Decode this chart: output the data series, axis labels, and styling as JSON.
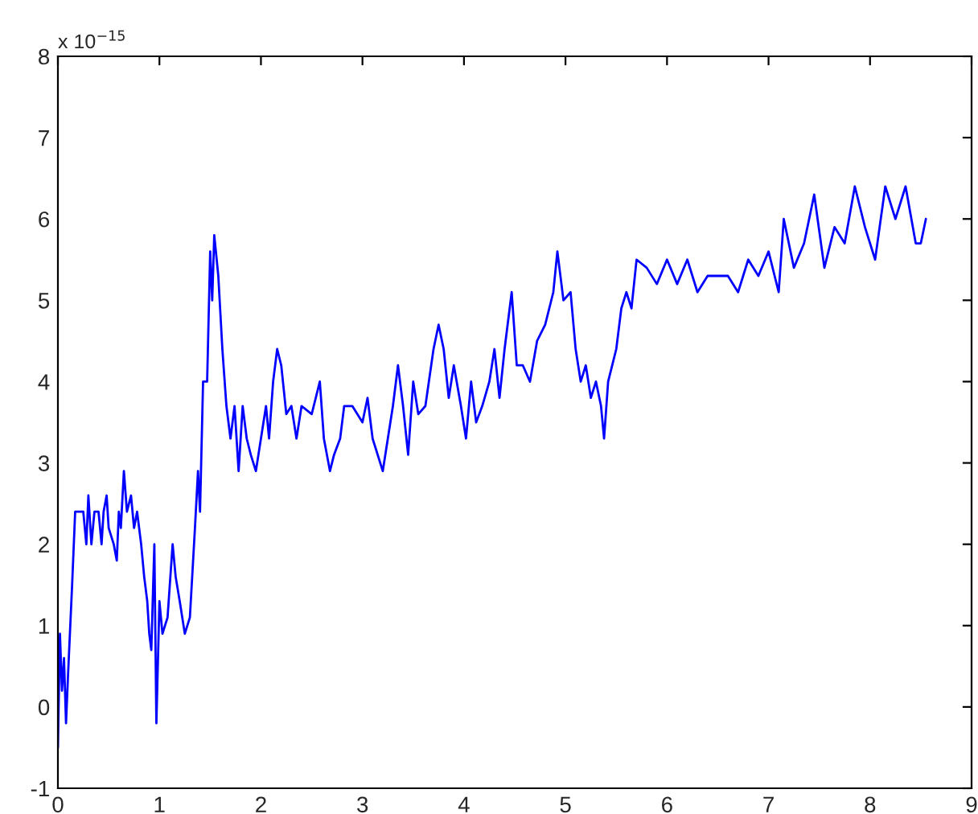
{
  "chart_data": {
    "type": "line",
    "x": [
      0,
      0.02,
      0.04,
      0.06,
      0.08,
      0.1,
      0.14,
      0.17,
      0.25,
      0.28,
      0.3,
      0.33,
      0.36,
      0.4,
      0.43,
      0.45,
      0.48,
      0.5,
      0.55,
      0.58,
      0.6,
      0.62,
      0.65,
      0.68,
      0.72,
      0.75,
      0.78,
      0.82,
      0.85,
      0.88,
      0.9,
      0.92,
      0.95,
      0.97,
      1.0,
      1.03,
      1.08,
      1.13,
      1.16,
      1.2,
      1.25,
      1.3,
      1.35,
      1.38,
      1.4,
      1.43,
      1.47,
      1.5,
      1.52,
      1.54,
      1.58,
      1.62,
      1.66,
      1.7,
      1.74,
      1.78,
      1.82,
      1.86,
      1.9,
      1.95,
      2.0,
      2.05,
      2.08,
      2.12,
      2.16,
      2.2,
      2.25,
      2.3,
      2.35,
      2.4,
      2.5,
      2.58,
      2.62,
      2.68,
      2.72,
      2.78,
      2.82,
      2.9,
      3.0,
      3.05,
      3.1,
      3.2,
      3.25,
      3.3,
      3.35,
      3.4,
      3.45,
      3.5,
      3.55,
      3.62,
      3.7,
      3.75,
      3.8,
      3.85,
      3.9,
      3.97,
      4.02,
      4.07,
      4.12,
      4.18,
      4.25,
      4.3,
      4.35,
      4.4,
      4.47,
      4.52,
      4.58,
      4.65,
      4.72,
      4.8,
      4.88,
      4.92,
      4.98,
      5.05,
      5.1,
      5.15,
      5.2,
      5.25,
      5.3,
      5.35,
      5.38,
      5.42,
      5.5,
      5.55,
      5.6,
      5.65,
      5.7,
      5.8,
      5.9,
      6.0,
      6.1,
      6.2,
      6.3,
      6.4,
      6.5,
      6.6,
      6.7,
      6.8,
      6.9,
      7.0,
      7.1,
      7.15,
      7.25,
      7.35,
      7.45,
      7.55,
      7.65,
      7.75,
      7.85,
      7.95,
      8.05,
      8.15,
      8.25,
      8.35,
      8.45,
      8.5,
      8.55
    ],
    "series": [
      {
        "color": "#0000ff",
        "values": [
          -0.5,
          0.9,
          0.2,
          0.6,
          -0.2,
          0.4,
          1.5,
          2.4,
          2.4,
          2.0,
          2.6,
          2.0,
          2.4,
          2.4,
          2.0,
          2.4,
          2.6,
          2.2,
          2.0,
          1.8,
          2.4,
          2.2,
          2.9,
          2.4,
          2.6,
          2.2,
          2.4,
          2.0,
          1.6,
          1.3,
          0.9,
          0.7,
          2.0,
          -0.2,
          1.3,
          0.9,
          1.1,
          2.0,
          1.6,
          1.3,
          0.9,
          1.1,
          2.2,
          2.9,
          2.4,
          4.0,
          4.0,
          5.6,
          5.0,
          5.8,
          5.3,
          4.4,
          3.7,
          3.3,
          3.7,
          2.9,
          3.7,
          3.3,
          3.1,
          2.9,
          3.3,
          3.7,
          3.3,
          4.0,
          4.4,
          4.2,
          3.6,
          3.7,
          3.3,
          3.7,
          3.6,
          4.0,
          3.3,
          2.9,
          3.1,
          3.3,
          3.7,
          3.7,
          3.5,
          3.8,
          3.3,
          2.9,
          3.3,
          3.7,
          4.2,
          3.7,
          3.1,
          4.0,
          3.6,
          3.7,
          4.4,
          4.7,
          4.4,
          3.8,
          4.2,
          3.7,
          3.3,
          4.0,
          3.5,
          3.7,
          4.0,
          4.4,
          3.8,
          4.4,
          5.1,
          4.2,
          4.2,
          4.0,
          4.5,
          4.7,
          5.1,
          5.6,
          5.0,
          5.1,
          4.4,
          4.0,
          4.2,
          3.8,
          4.0,
          3.7,
          3.3,
          4.0,
          4.4,
          4.9,
          5.1,
          4.9,
          5.5,
          5.4,
          5.2,
          5.5,
          5.2,
          5.5,
          5.1,
          5.3,
          5.3,
          5.3,
          5.1,
          5.5,
          5.3,
          5.6,
          5.1,
          6.0,
          5.4,
          5.7,
          6.3,
          5.4,
          5.9,
          5.7,
          6.4,
          5.9,
          5.5,
          6.4,
          6.0,
          6.4,
          5.7,
          5.7,
          6.0
        ]
      }
    ],
    "xlim": [
      0,
      9
    ],
    "ylim": [
      -1,
      8
    ],
    "xticks": [
      0,
      1,
      2,
      3,
      4,
      5,
      6,
      7,
      8,
      9
    ],
    "yticks": [
      -1,
      0,
      1,
      2,
      3,
      4,
      5,
      6,
      7,
      8
    ],
    "annotations": [
      "x 10$^{−15}$"
    ],
    "grid": false,
    "legend": false
  }
}
